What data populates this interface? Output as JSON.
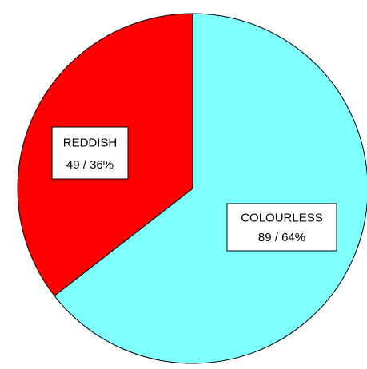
{
  "chart_data": {
    "type": "pie",
    "slices": [
      {
        "label": "COLOURLESS",
        "value": 89,
        "percent": "64%",
        "value_text": "89 / 64%",
        "color": "#80ffff"
      },
      {
        "label": "REDDISH",
        "value": 49,
        "percent": "36%",
        "value_text": "49 / 36%",
        "color": "#ff0000"
      }
    ],
    "start_angle_deg": 0,
    "direction": "clockwise",
    "legend": "none",
    "title": ""
  }
}
